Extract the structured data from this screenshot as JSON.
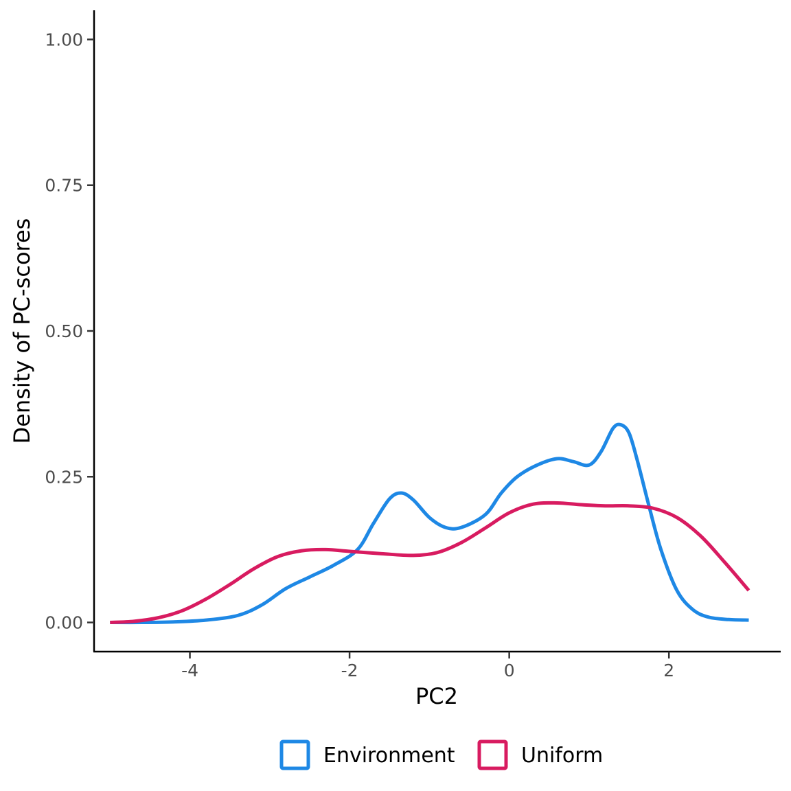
{
  "chart_data": {
    "type": "line",
    "title": "",
    "xlabel": "PC2",
    "ylabel": "Density of PC-scores",
    "xlim": [
      -5.2,
      3.4
    ],
    "ylim": [
      -0.05,
      1.05
    ],
    "x_ticks": [
      -4,
      -2,
      0,
      2
    ],
    "x_tick_labels": [
      "-4",
      "-2",
      "0",
      "2"
    ],
    "y_ticks": [
      0,
      0.25,
      0.5,
      0.75,
      1.0
    ],
    "y_tick_labels": [
      "0.00",
      "0.25",
      "0.50",
      "0.75",
      "1.00"
    ],
    "grid": false,
    "legend_position": "bottom",
    "series": [
      {
        "name": "Environment",
        "color": "#1E88E5",
        "points": [
          [
            -5.0,
            0.0
          ],
          [
            -4.6,
            0.0
          ],
          [
            -4.2,
            0.001
          ],
          [
            -3.8,
            0.004
          ],
          [
            -3.4,
            0.012
          ],
          [
            -3.1,
            0.03
          ],
          [
            -2.8,
            0.058
          ],
          [
            -2.5,
            0.078
          ],
          [
            -2.2,
            0.098
          ],
          [
            -1.9,
            0.125
          ],
          [
            -1.7,
            0.17
          ],
          [
            -1.5,
            0.212
          ],
          [
            -1.35,
            0.222
          ],
          [
            -1.2,
            0.21
          ],
          [
            -1.0,
            0.18
          ],
          [
            -0.8,
            0.163
          ],
          [
            -0.6,
            0.163
          ],
          [
            -0.3,
            0.185
          ],
          [
            -0.1,
            0.222
          ],
          [
            0.1,
            0.25
          ],
          [
            0.35,
            0.27
          ],
          [
            0.6,
            0.281
          ],
          [
            0.8,
            0.276
          ],
          [
            1.0,
            0.27
          ],
          [
            1.15,
            0.293
          ],
          [
            1.3,
            0.333
          ],
          [
            1.4,
            0.339
          ],
          [
            1.5,
            0.325
          ],
          [
            1.6,
            0.28
          ],
          [
            1.75,
            0.2
          ],
          [
            1.9,
            0.125
          ],
          [
            2.1,
            0.055
          ],
          [
            2.3,
            0.022
          ],
          [
            2.5,
            0.009
          ],
          [
            2.75,
            0.005
          ],
          [
            3.0,
            0.004
          ]
        ]
      },
      {
        "name": "Uniform",
        "color": "#D81B60",
        "points": [
          [
            -5.0,
            0.0
          ],
          [
            -4.7,
            0.002
          ],
          [
            -4.4,
            0.008
          ],
          [
            -4.1,
            0.02
          ],
          [
            -3.8,
            0.04
          ],
          [
            -3.5,
            0.065
          ],
          [
            -3.2,
            0.092
          ],
          [
            -2.9,
            0.113
          ],
          [
            -2.6,
            0.123
          ],
          [
            -2.3,
            0.125
          ],
          [
            -2.0,
            0.122
          ],
          [
            -1.6,
            0.118
          ],
          [
            -1.2,
            0.115
          ],
          [
            -0.9,
            0.12
          ],
          [
            -0.6,
            0.137
          ],
          [
            -0.3,
            0.162
          ],
          [
            0.0,
            0.188
          ],
          [
            0.3,
            0.203
          ],
          [
            0.6,
            0.205
          ],
          [
            0.9,
            0.202
          ],
          [
            1.2,
            0.2
          ],
          [
            1.5,
            0.2
          ],
          [
            1.8,
            0.196
          ],
          [
            2.1,
            0.18
          ],
          [
            2.4,
            0.148
          ],
          [
            2.7,
            0.103
          ],
          [
            3.0,
            0.055
          ]
        ]
      }
    ]
  }
}
